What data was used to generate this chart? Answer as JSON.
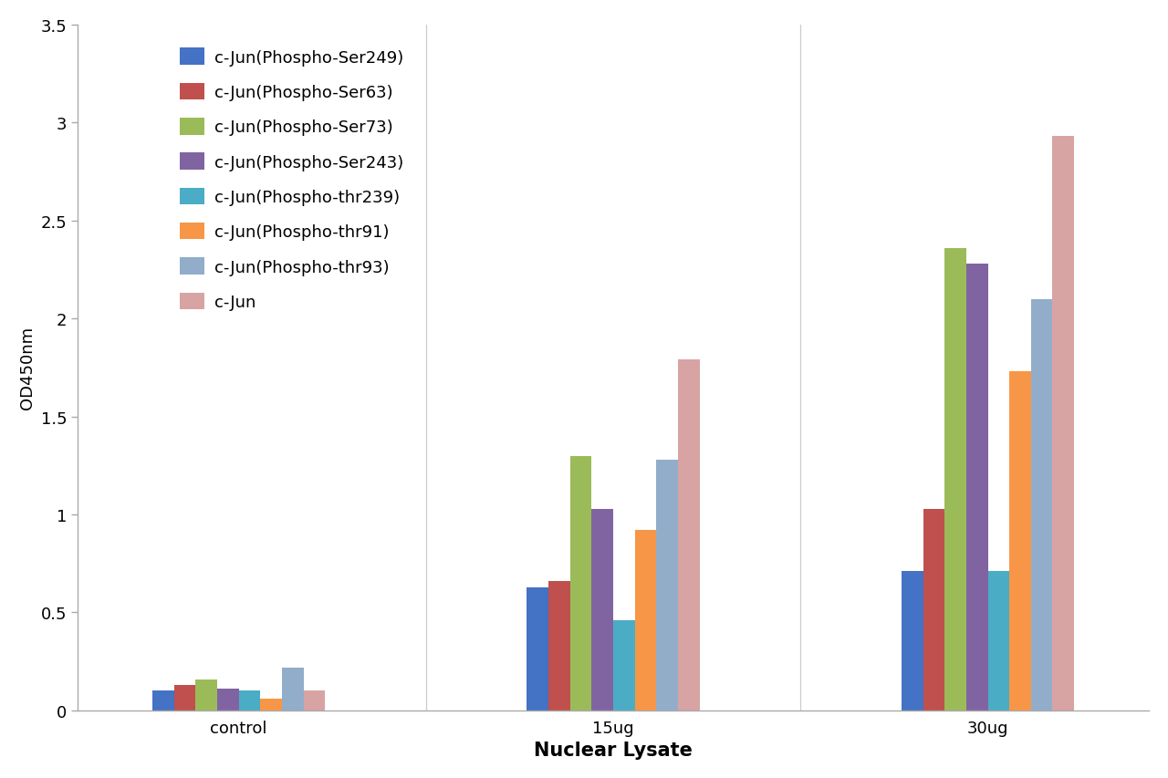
{
  "categories": [
    "control",
    "15ug",
    "30ug"
  ],
  "series": [
    {
      "label": "c-Jun(Phospho-Ser249)",
      "color": "#4472C4",
      "values": [
        0.1,
        0.63,
        0.71
      ]
    },
    {
      "label": "c-Jun(Phospho-Ser63)",
      "color": "#C0504D",
      "values": [
        0.13,
        0.66,
        1.03
      ]
    },
    {
      "label": "c-Jun(Phospho-Ser73)",
      "color": "#9BBB59",
      "values": [
        0.16,
        1.3,
        2.36
      ]
    },
    {
      "label": "c-Jun(Phospho-Ser243)",
      "color": "#8064A2",
      "values": [
        0.11,
        1.03,
        2.28
      ]
    },
    {
      "label": "c-Jun(Phospho-thr239)",
      "color": "#4BACC6",
      "values": [
        0.1,
        0.46,
        0.71
      ]
    },
    {
      "label": "c-Jun(Phospho-thr91)",
      "color": "#F79646",
      "values": [
        0.06,
        0.92,
        1.73
      ]
    },
    {
      "label": "c-Jun(Phospho-thr93)",
      "color": "#92ADCA",
      "values": [
        0.22,
        1.28,
        2.1
      ]
    },
    {
      "label": "c-Jun",
      "color": "#D8A3A3",
      "values": [
        0.1,
        1.79,
        2.93
      ]
    }
  ],
  "xlabel": "Nuclear Lysate",
  "ylabel": "OD450nm",
  "ylim": [
    0,
    3.5
  ],
  "yticks": [
    0,
    0.5,
    1.0,
    1.5,
    2.0,
    2.5,
    3.0,
    3.5
  ],
  "background_color": "#ffffff",
  "xlabel_fontsize": 15,
  "ylabel_fontsize": 13,
  "tick_fontsize": 13,
  "legend_fontsize": 13
}
